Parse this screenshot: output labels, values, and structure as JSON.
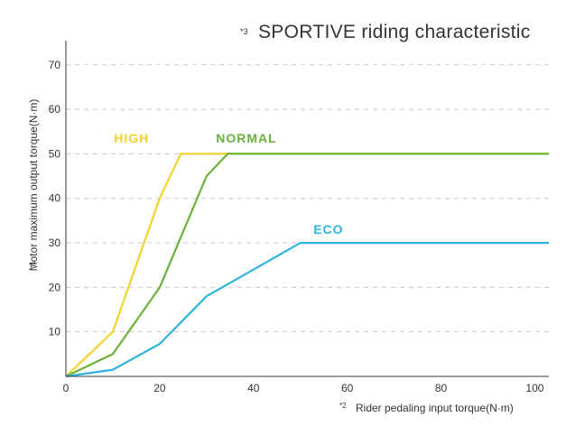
{
  "chart_data": {
    "type": "line",
    "title_note": "*3",
    "title": "SPORTIVE riding characteristic",
    "xlabel_note": "*2",
    "xlabel": "Rider pedaling input torque(N·m)",
    "ylabel_note": "*1",
    "ylabel": "Motor maximum output torque(N·m)",
    "xlim": [
      0,
      103
    ],
    "ylim": [
      0,
      73
    ],
    "x_ticks": [
      0,
      20,
      40,
      60,
      80,
      100
    ],
    "y_ticks": [
      10,
      20,
      30,
      40,
      50,
      60,
      70
    ],
    "grid": "horizontal dashed",
    "series": [
      {
        "name": "HIGH",
        "color": "#f2d22e",
        "x": [
          0,
          10,
          20,
          24.5,
          103
        ],
        "y": [
          0,
          10,
          40,
          50,
          50
        ]
      },
      {
        "name": "NORMAL",
        "color": "#6ab23a",
        "x": [
          0,
          10,
          20,
          30,
          34.5,
          103
        ],
        "y": [
          0,
          5,
          20,
          45,
          50,
          50
        ]
      },
      {
        "name": "ECO",
        "color": "#2eb4e0",
        "x": [
          0,
          10,
          20,
          30,
          50,
          103
        ],
        "y": [
          0,
          1.5,
          7.3,
          18,
          30,
          30
        ]
      }
    ]
  }
}
